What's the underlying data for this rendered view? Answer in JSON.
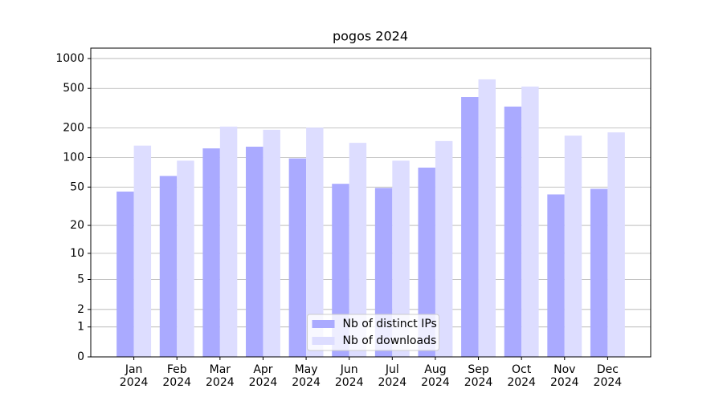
{
  "chart_data": {
    "type": "bar",
    "title": "pogos 2024",
    "categories": [
      "Jan\n2024",
      "Feb\n2024",
      "Mar\n2024",
      "Apr\n2024",
      "May\n2024",
      "Jun\n2024",
      "Jul\n2024",
      "Aug\n2024",
      "Sep\n2024",
      "Oct\n2024",
      "Nov\n2024",
      "Dec\n2024"
    ],
    "series": [
      {
        "name": "Nb of distinct IPs",
        "color": "#aaaaff",
        "values": [
          45,
          65,
          124,
          129,
          98,
          54,
          49,
          79,
          409,
          328,
          42,
          48
        ]
      },
      {
        "name": "Nb of downloads",
        "color": "#ddddff",
        "values": [
          132,
          93,
          206,
          191,
          201,
          141,
          93,
          147,
          617,
          522,
          167,
          180
        ]
      }
    ],
    "y_scale": "log1p",
    "ylim": [
      0,
      1272
    ],
    "yticks": [
      0,
      1,
      2,
      5,
      10,
      20,
      50,
      100,
      200,
      500,
      1000
    ],
    "grid": true,
    "legend": "lower center"
  }
}
